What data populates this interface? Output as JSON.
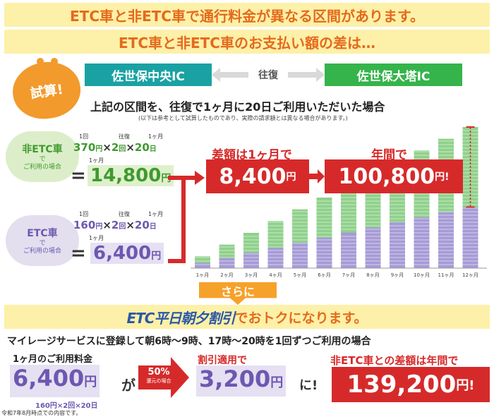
{
  "headline": "ETC車と非ETC車で通行料金が異なる区間があります。",
  "subheadline": "ETC車と非ETC車のお支払い額の差は…",
  "badge": "試算!",
  "route": {
    "from": "佐世保中央IC",
    "to": "佐世保大塔IC",
    "mode": "往復"
  },
  "condition": "上記の区間を、往復で1ヶ月に20日ご利用いただいた場合",
  "disclaimer": "(以下は参考として試算したものであり、実際の請求額とは異なる場合があります。)",
  "non_etc": {
    "label": "非ETC車",
    "sub1": "で",
    "sub2": "ご利用の場合",
    "cap_once": "1回",
    "cap_round": "往復",
    "cap_month": "1ヶ月",
    "cap_month2": "1ヶ月",
    "fare": "370",
    "trips": "2",
    "days": "20",
    "total": "14,800",
    "yen": "円",
    "kai": "回",
    "nichi": "日",
    "times": "×",
    "eq": "="
  },
  "etc": {
    "label": "ETC車",
    "sub1": "で",
    "sub2": "ご利用の場合",
    "cap_once": "1回",
    "cap_round": "往復",
    "cap_month": "1ヶ月",
    "cap_month2": "1ヶ月",
    "fare": "160",
    "trips": "2",
    "days": "20",
    "total": "6,400",
    "yen": "円",
    "kai": "回",
    "nichi": "日",
    "times": "×",
    "eq": "="
  },
  "monthly_diff": {
    "title": "差額は1ヶ月で",
    "value": "8,400",
    "unit": "円"
  },
  "annual_diff": {
    "title": "年間で",
    "value": "100,800",
    "unit": "円!"
  },
  "chart_data": {
    "type": "bar",
    "categories": [
      "1ヶ月",
      "2ヶ月",
      "3ヶ月",
      "4ヶ月",
      "5ヶ月",
      "6ヶ月",
      "7ヶ月",
      "8ヶ月",
      "9ヶ月",
      "10ヶ月",
      "11ヶ月",
      "12ヶ月"
    ],
    "series": [
      {
        "name": "非ETC車",
        "color": "#8fd18b",
        "values": [
          14800,
          29600,
          44400,
          59200,
          74000,
          88800,
          103600,
          118400,
          133200,
          148000,
          162800,
          177600
        ]
      },
      {
        "name": "ETC車",
        "color": "#a69bd6",
        "values": [
          6400,
          12800,
          19200,
          25600,
          32000,
          38400,
          44800,
          51200,
          57600,
          64000,
          70400,
          76800
        ]
      }
    ]
  },
  "sarani": "さらに",
  "discount": {
    "logo": "ETC平日朝夕割引",
    "text": "でおトクになります。"
  },
  "mileage": "マイレージサービスに登録して朝6時〜9時、17時〜20時を1回ずつご利用の場合",
  "monthly_fee": {
    "label": "1ヶ月のご利用料金",
    "value": "6,400",
    "unit": "円",
    "ga": "が",
    "formula": "160円×2回×20日"
  },
  "rebate": {
    "pct": "50%",
    "text": "還元の場合"
  },
  "discounted": {
    "label": "割引適用で",
    "value": "3,200",
    "unit": "円",
    "ni": "に!"
  },
  "annual_total": {
    "label": "非ETC車との差額は年間で",
    "value": "139,200",
    "unit": "円!"
  },
  "footnote": "令和7年8月時点での内容です。"
}
